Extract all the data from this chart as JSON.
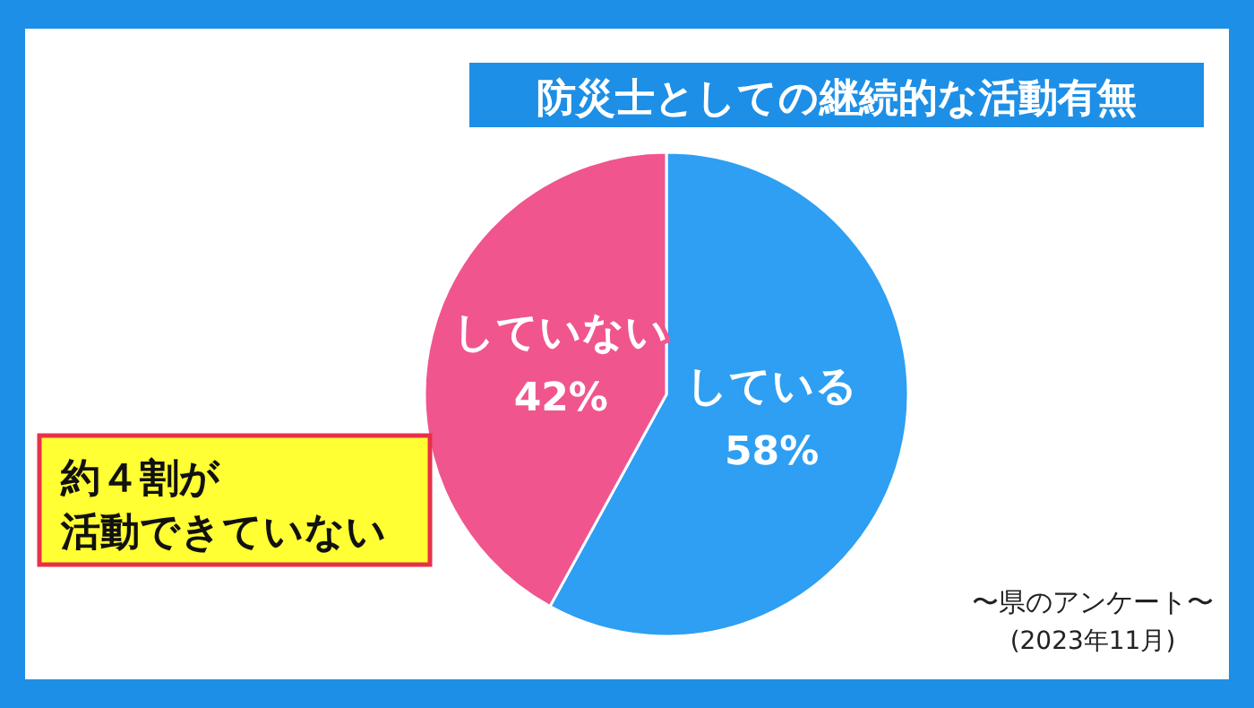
{
  "chart_data": {
    "type": "pie",
    "title": "防災士としての継続的な活動有無",
    "categories": [
      "している",
      "していない"
    ],
    "values": [
      58,
      42
    ],
    "colors": [
      "#2e9ff2",
      "#f0558e"
    ],
    "value_labels": [
      "58%",
      "42%"
    ],
    "annotations": [
      "約４割が",
      "活動できていない",
      "〜県のアンケート〜",
      "(2023年11月)"
    ]
  }
}
